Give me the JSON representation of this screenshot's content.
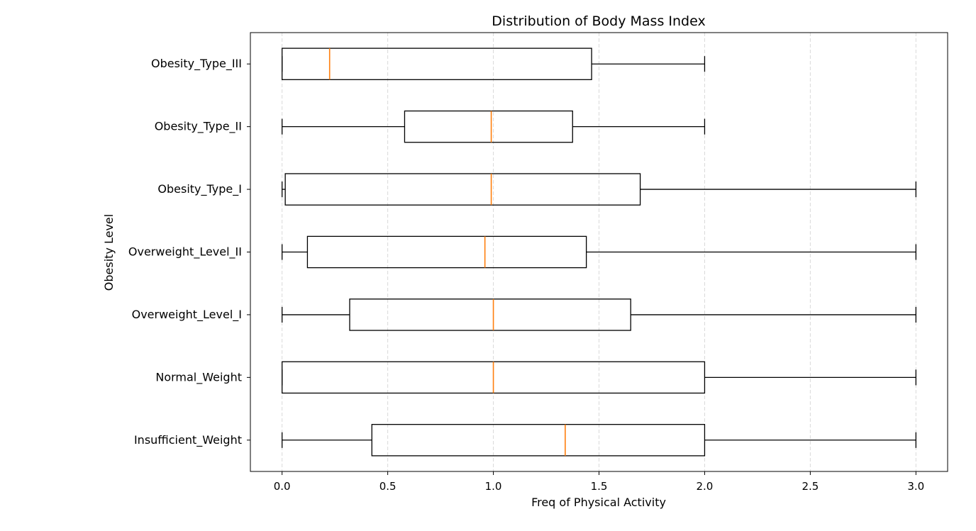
{
  "chart_data": {
    "type": "boxplot",
    "orientation": "horizontal",
    "title": "Distribution of Body Mass Index",
    "xlabel": "Freq of Physical Activity",
    "ylabel": "Obesity Level",
    "xlim": [
      -0.15,
      3.15
    ],
    "xticks": [
      "0.0",
      "0.5",
      "1.0",
      "1.5",
      "2.0",
      "2.5",
      "3.0"
    ],
    "x_grid": true,
    "categories": [
      "Insufficient_Weight",
      "Normal_Weight",
      "Overweight_Level_I",
      "Overweight_Level_II",
      "Obesity_Type_I",
      "Obesity_Type_II",
      "Obesity_Type_III"
    ],
    "boxes": [
      {
        "category": "Insufficient_Weight",
        "whisker_low": 0.0,
        "q1": 0.425,
        "median": 1.34,
        "q3": 2.0,
        "whisker_high": 3.0
      },
      {
        "category": "Normal_Weight",
        "whisker_low": 0.0,
        "q1": 0.0,
        "median": 1.0,
        "q3": 2.0,
        "whisker_high": 3.0
      },
      {
        "category": "Overweight_Level_I",
        "whisker_low": 0.0,
        "q1": 0.32,
        "median": 1.0,
        "q3": 1.65,
        "whisker_high": 3.0
      },
      {
        "category": "Overweight_Level_II",
        "whisker_low": 0.0,
        "q1": 0.12,
        "median": 0.96,
        "q3": 1.44,
        "whisker_high": 3.0
      },
      {
        "category": "Obesity_Type_I",
        "whisker_low": 0.0,
        "q1": 0.015,
        "median": 0.99,
        "q3": 1.695,
        "whisker_high": 3.0
      },
      {
        "category": "Obesity_Type_II",
        "whisker_low": 0.0,
        "q1": 0.58,
        "median": 0.99,
        "q3": 1.375,
        "whisker_high": 2.0
      },
      {
        "category": "Obesity_Type_III",
        "whisker_low": 0.0,
        "q1": 0.0,
        "median": 0.225,
        "q3": 1.465,
        "whisker_high": 2.0
      }
    ],
    "colors": {
      "box": "#000000",
      "median": "#ff7f0e",
      "grid": "#d9d9d9"
    }
  }
}
